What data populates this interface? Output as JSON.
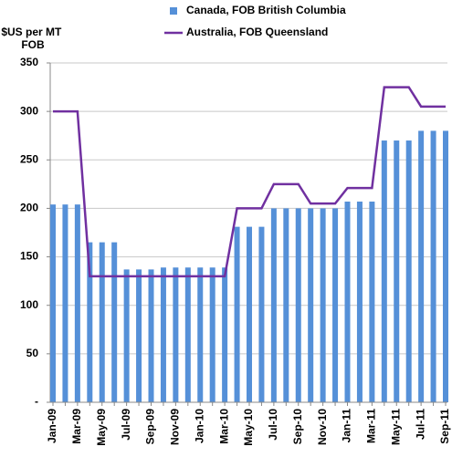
{
  "chart_data": {
    "type": "bar-line",
    "ylabel": [
      "$US per MT",
      "FOB"
    ],
    "categories": [
      "Jan-09",
      null,
      "Mar-09",
      null,
      "May-09",
      null,
      "Jul-09",
      null,
      "Sep-09",
      null,
      "Nov-09",
      null,
      "Jan-10",
      null,
      "Mar-10",
      null,
      "May-10",
      null,
      "Jul-10",
      null,
      "Sep-10",
      null,
      "Nov-10",
      null,
      "Jan-11",
      null,
      "Mar-11",
      null,
      "May-11",
      null,
      "Jul-11",
      null,
      "Sep-11"
    ],
    "series": [
      {
        "name": "Canada, FOB British Columbia",
        "type": "bar",
        "color": "#5590d8",
        "values": [
          204,
          204,
          204,
          165,
          165,
          165,
          137,
          137,
          137,
          139,
          139,
          139,
          139,
          139,
          139,
          181,
          181,
          181,
          200,
          200,
          200,
          200,
          200,
          200,
          207,
          207,
          207,
          270,
          270,
          270,
          280,
          280,
          280
        ]
      },
      {
        "name": "Australia, FOB Queensland",
        "type": "line",
        "color": "#7030a0",
        "values": [
          300,
          300,
          300,
          130,
          130,
          130,
          130,
          130,
          130,
          130,
          130,
          130,
          130,
          130,
          130,
          200,
          200,
          200,
          225,
          225,
          225,
          205,
          205,
          205,
          221,
          221,
          221,
          325,
          325,
          325,
          305,
          305,
          305
        ]
      }
    ],
    "ylim": [
      0,
      350
    ],
    "yticks": [
      {
        "value": 0,
        "label": "-"
      },
      50,
      100,
      150,
      200,
      250,
      300,
      350
    ],
    "grid": true,
    "legend": "top"
  }
}
